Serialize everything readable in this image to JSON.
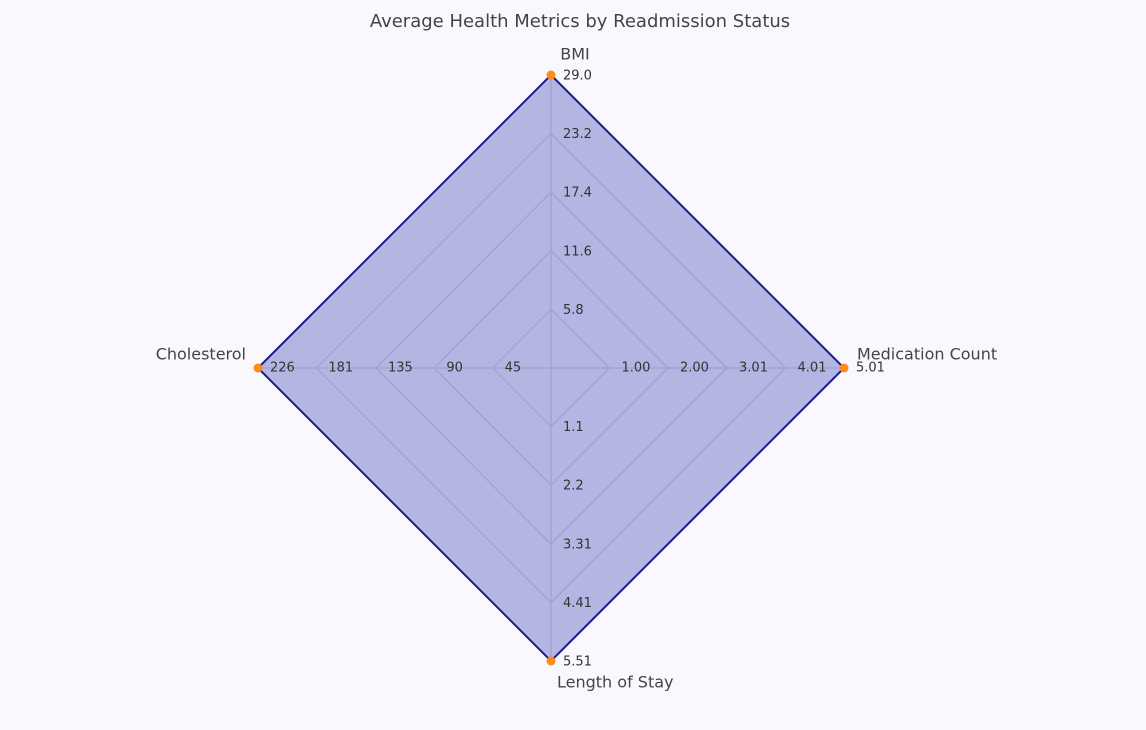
{
  "chart_data": {
    "type": "radar",
    "title": "Average Health Metrics by Readmission Status",
    "color": "#1a1a8c",
    "fill": "#8e92d4",
    "point_color": "#ff8c1a",
    "axes": [
      {
        "label": "BMI",
        "lim": [
          0,
          29.0
        ],
        "ticks": [
          5.8,
          11.6,
          17.4,
          23.2,
          {
            "value": 29.0,
            "label": "29.0"
          }
        ]
      },
      {
        "label": "Medication Count",
        "lim": [
          0,
          5.01
        ],
        "ticks": [
          {
            "value": 1.0,
            "label": "1.00"
          },
          {
            "value": 2.0,
            "label": "2.00"
          },
          3.01,
          4.01,
          5.01
        ]
      },
      {
        "label": "Length of Stay",
        "lim": [
          0,
          5.51
        ],
        "ticks": [
          1.1,
          2.2,
          3.31,
          4.41,
          5.51
        ]
      },
      {
        "label": "Cholesterol",
        "lim": [
          0,
          226
        ],
        "ticks": [
          45,
          90,
          135,
          181,
          226
        ]
      }
    ],
    "values": [
      29.0,
      5.01,
      5.51,
      226
    ]
  }
}
